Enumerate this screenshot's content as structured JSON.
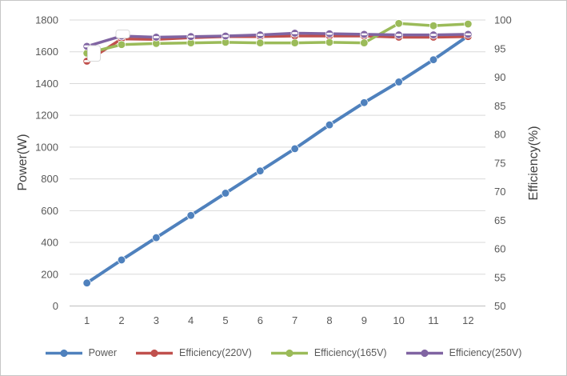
{
  "chart_data": {
    "type": "line",
    "title": "",
    "categories": [
      "1",
      "2",
      "3",
      "4",
      "5",
      "6",
      "7",
      "8",
      "9",
      "10",
      "11",
      "12"
    ],
    "series": [
      {
        "name": "Power",
        "axis": "left",
        "color": "#4F81BD",
        "marker": "circle",
        "values": [
          145,
          290,
          430,
          570,
          710,
          850,
          990,
          1140,
          1280,
          1410,
          1550,
          1700
        ]
      },
      {
        "name": "Efficiency(220V)",
        "axis": "right",
        "color": "#C0504D",
        "marker": "circle-dash",
        "values": [
          92.8,
          96.7,
          96.6,
          96.9,
          97.1,
          97.1,
          97.2,
          97.2,
          97.2,
          97.0,
          97.0,
          97.1
        ]
      },
      {
        "name": "Efficiency(165V)",
        "axis": "right",
        "color": "#9BBB59",
        "marker": "circle",
        "values": [
          94.2,
          95.7,
          95.9,
          96.0,
          96.1,
          96.0,
          96.0,
          96.1,
          96.0,
          99.4,
          99.0,
          99.3
        ]
      },
      {
        "name": "Efficiency(250V)",
        "axis": "right",
        "color": "#8064A2",
        "marker": "circle-dash",
        "values": [
          95.4,
          97.2,
          97.0,
          97.1,
          97.2,
          97.4,
          97.7,
          97.6,
          97.5,
          97.4,
          97.4,
          97.5
        ]
      }
    ],
    "left_axis": {
      "label": "Power(W)",
      "min": 0,
      "max": 1800,
      "step": 200
    },
    "right_axis": {
      "label": "Efficiency(%)",
      "min": 50,
      "max": 100,
      "step": 5
    },
    "x_axis": {
      "labels": [
        "1",
        "2",
        "3",
        "4",
        "5",
        "6",
        "7",
        "8",
        "9",
        "10",
        "11",
        "12"
      ]
    },
    "legend_position": "bottom",
    "grid": true,
    "grid_color": "#D9D9D9",
    "axis_line_color": "#BFBFBF",
    "tick_text_color": "#595959",
    "axis_title_color": "#404040"
  }
}
